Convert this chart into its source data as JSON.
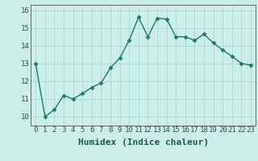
{
  "x": [
    0,
    1,
    2,
    3,
    4,
    5,
    6,
    7,
    8,
    9,
    10,
    11,
    12,
    13,
    14,
    15,
    16,
    17,
    18,
    19,
    20,
    21,
    22,
    23
  ],
  "y": [
    13.0,
    10.0,
    10.4,
    11.2,
    11.0,
    11.3,
    11.65,
    11.9,
    12.75,
    13.3,
    14.3,
    15.6,
    14.5,
    15.55,
    15.5,
    14.5,
    14.5,
    14.3,
    14.65,
    14.15,
    13.75,
    13.4,
    13.0,
    12.9
  ],
  "xlabel": "Humidex (Indice chaleur)",
  "ylim": [
    9.5,
    16.3
  ],
  "yticks": [
    10,
    11,
    12,
    13,
    14,
    15,
    16
  ],
  "xticks": [
    0,
    1,
    2,
    3,
    4,
    5,
    6,
    7,
    8,
    9,
    10,
    11,
    12,
    13,
    14,
    15,
    16,
    17,
    18,
    19,
    20,
    21,
    22,
    23
  ],
  "line_color": "#1a7a6e",
  "marker": "D",
  "marker_size": 2.5,
  "bg_color": "#cceee8",
  "grid_color": "#aaddda",
  "tick_fontsize": 6.5,
  "xlabel_fontsize": 8,
  "lw": 1.0
}
